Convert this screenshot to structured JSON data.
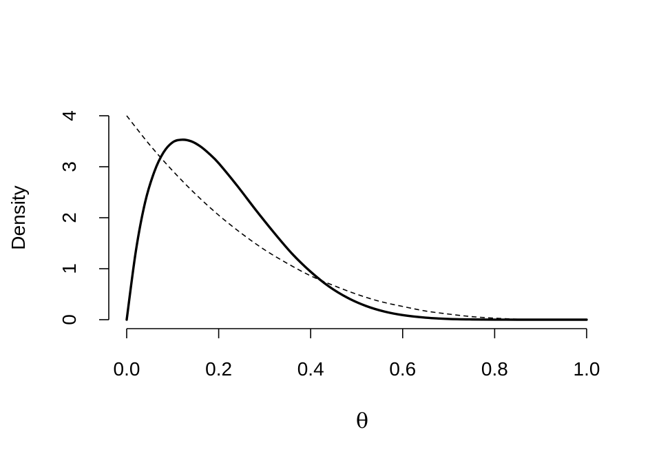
{
  "chart_data": {
    "type": "line",
    "title": "",
    "xlabel": "θ",
    "ylabel": "Density",
    "xlim": [
      0,
      1
    ],
    "ylim": [
      0,
      4
    ],
    "xticks": [
      "0.0",
      "0.2",
      "0.4",
      "0.6",
      "0.8",
      "1.0"
    ],
    "yticks": [
      "0",
      "1",
      "2",
      "3",
      "4"
    ],
    "grid": false,
    "legend": "none",
    "series": [
      {
        "style": "solid",
        "x": [
          0.0,
          0.02,
          0.04,
          0.06,
          0.08,
          0.1,
          0.12,
          0.14,
          0.16,
          0.18,
          0.2,
          0.24,
          0.28,
          0.32,
          0.36,
          0.4,
          0.44,
          0.48,
          0.52,
          0.56,
          0.6,
          0.65,
          0.7,
          0.75,
          0.8,
          0.85,
          0.9,
          0.95,
          1.0
        ],
        "y": [
          0.0,
          1.35,
          2.3,
          2.9,
          3.28,
          3.48,
          3.53,
          3.5,
          3.4,
          3.25,
          3.07,
          2.63,
          2.16,
          1.71,
          1.29,
          0.94,
          0.65,
          0.43,
          0.27,
          0.16,
          0.09,
          0.04,
          0.015,
          0.005,
          0.001,
          0.0,
          0.0,
          0.0,
          0.0
        ]
      },
      {
        "style": "dashed",
        "x": [
          0.0,
          0.05,
          0.1,
          0.15,
          0.2,
          0.25,
          0.3,
          0.35,
          0.4,
          0.45,
          0.5,
          0.55,
          0.6,
          0.65,
          0.7,
          0.75,
          0.8,
          0.85,
          0.9,
          0.95,
          1.0
        ],
        "y": [
          4.0,
          3.43,
          2.92,
          2.46,
          2.05,
          1.69,
          1.37,
          1.1,
          0.86,
          0.67,
          0.5,
          0.36,
          0.26,
          0.17,
          0.11,
          0.06,
          0.03,
          0.01,
          0.004,
          0.0005,
          0.0
        ]
      }
    ]
  }
}
